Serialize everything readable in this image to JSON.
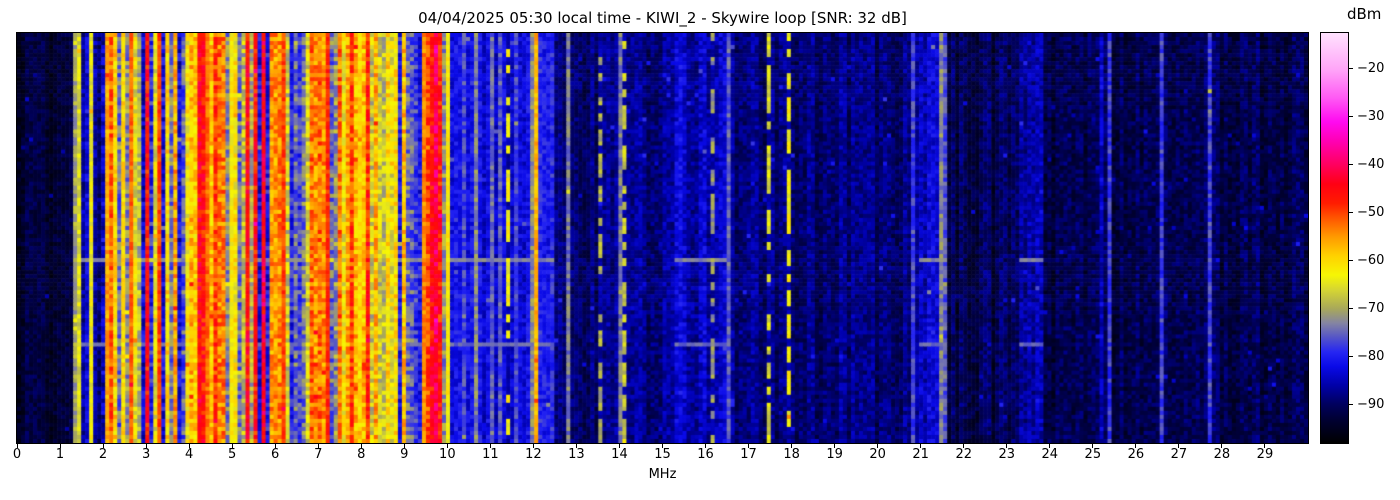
{
  "title": "04/04/2025 05:30 local time - KIWI_2 - Skywire loop [SNR: 32 dB]",
  "xaxis": {
    "label": "MHz",
    "tick_labels": [
      "0",
      "1",
      "2",
      "3",
      "4",
      "5",
      "6",
      "7",
      "8",
      "9",
      "10",
      "11",
      "12",
      "13",
      "14",
      "15",
      "16",
      "17",
      "18",
      "19",
      "20",
      "21",
      "22",
      "23",
      "24",
      "25",
      "26",
      "27",
      "28",
      "29"
    ]
  },
  "colorbar": {
    "label": "dBm",
    "ticks": [
      {
        "value": -20,
        "label": "−20"
      },
      {
        "value": -30,
        "label": "−30"
      },
      {
        "value": -40,
        "label": "−40"
      },
      {
        "value": -50,
        "label": "−50"
      },
      {
        "value": -60,
        "label": "−60"
      },
      {
        "value": -70,
        "label": "−70"
      },
      {
        "value": -80,
        "label": "−80"
      },
      {
        "value": -90,
        "label": "−90"
      }
    ]
  },
  "chart_data": {
    "type": "heatmap",
    "subtype": "rf-waterfall-spectrogram",
    "title": "04/04/2025 05:30 local time - KIWI_2 - Skywire loop [SNR: 32 dB]",
    "xlabel": "MHz",
    "ylabel": "",
    "x_range": [
      0,
      30
    ],
    "x_tick_step": 1,
    "grid": false,
    "legend": false,
    "color_scale": {
      "label": "dBm",
      "min": -98,
      "max": -12.5,
      "ticks": [
        -20,
        -30,
        -40,
        -50,
        -60,
        -70,
        -80,
        -90
      ],
      "colormap_stops": [
        [
          -98,
          "#000000"
        ],
        [
          -93,
          "#000034"
        ],
        [
          -90,
          "#00005c"
        ],
        [
          -86,
          "#0000a8"
        ],
        [
          -82,
          "#0a0ae8"
        ],
        [
          -79,
          "#2626f2"
        ],
        [
          -76,
          "#5454c8"
        ],
        [
          -73,
          "#8484a2"
        ],
        [
          -70,
          "#a8a85a"
        ],
        [
          -66,
          "#d6d632"
        ],
        [
          -63,
          "#f6f604"
        ],
        [
          -59,
          "#ffd200"
        ],
        [
          -55,
          "#ff9a00"
        ],
        [
          -51,
          "#ff5400"
        ],
        [
          -48,
          "#ff1c00"
        ],
        [
          -44,
          "#ff0014"
        ],
        [
          -40,
          "#ff005e"
        ],
        [
          -35,
          "#ff00b4"
        ],
        [
          -31,
          "#ff0af0"
        ],
        [
          -26,
          "#ff5af4"
        ],
        [
          -20,
          "#ffa6f8"
        ],
        [
          -12.5,
          "#ffe2fe"
        ]
      ]
    },
    "bands": [
      {
        "from": 0.0,
        "to": 1.35,
        "level": "black"
      },
      {
        "from": 1.35,
        "to": 1.95,
        "level": "low"
      },
      {
        "from": 1.95,
        "to": 3.0,
        "level": "active"
      },
      {
        "from": 3.0,
        "to": 5.15,
        "level": "hot"
      },
      {
        "from": 5.15,
        "to": 5.9,
        "level": "active"
      },
      {
        "from": 5.9,
        "to": 7.7,
        "level": "hot"
      },
      {
        "from": 7.7,
        "to": 9.4,
        "level": "active"
      },
      {
        "from": 9.4,
        "to": 9.95,
        "level": "hot"
      },
      {
        "from": 9.95,
        "to": 12.45,
        "level": "medium"
      },
      {
        "from": 12.45,
        "to": 15.3,
        "level": "sparse"
      },
      {
        "from": 15.3,
        "to": 16.45,
        "level": "faint"
      },
      {
        "from": 16.45,
        "to": 20.95,
        "level": "sparse"
      },
      {
        "from": 20.95,
        "to": 21.65,
        "level": "faint"
      },
      {
        "from": 21.65,
        "to": 23.25,
        "level": "quiet"
      },
      {
        "from": 23.25,
        "to": 23.85,
        "level": "faint"
      },
      {
        "from": 23.85,
        "to": 30.0,
        "level": "quiet"
      }
    ],
    "column_profiles": {
      "black": {
        "cats": [
          [
            0.015,
            -84,
            3
          ],
          [
            1,
            -93,
            2
          ]
        ],
        "jitter": 2.5
      },
      "quiet": {
        "cats": [
          [
            0.02,
            -80,
            4
          ],
          [
            1,
            -91,
            2.5
          ]
        ],
        "jitter": 3
      },
      "sparse": {
        "cats": [
          [
            0.03,
            -78,
            5
          ],
          [
            1,
            -88.5,
            2.5
          ]
        ],
        "jitter": 3
      },
      "faint": {
        "cats": [
          [
            0.06,
            -75,
            5
          ],
          [
            1,
            -84.5,
            2.8
          ]
        ],
        "jitter": 3.2
      },
      "medium": {
        "cats": [
          [
            0.1,
            -73,
            5
          ],
          [
            0.35,
            -78,
            4
          ],
          [
            1,
            -82.5,
            2.5
          ]
        ],
        "jitter": 3.2
      },
      "low": {
        "cats": [
          [
            0.14,
            -66,
            8
          ],
          [
            0.4,
            -78,
            5
          ],
          [
            1,
            -86,
            3
          ]
        ],
        "jitter": 3.5
      },
      "active": {
        "cats": [
          [
            0.22,
            -52,
            9
          ],
          [
            0.56,
            -63,
            7
          ],
          [
            0.8,
            -71,
            5
          ],
          [
            1,
            -79,
            6
          ]
        ],
        "jitter": 5
      },
      "hot": {
        "cats": [
          [
            0.4,
            -49,
            8
          ],
          [
            0.7,
            -60,
            7
          ],
          [
            0.85,
            -70,
            5
          ],
          [
            1,
            -78,
            5
          ]
        ],
        "jitter": 5
      }
    },
    "signals": [
      {
        "freq": 2.05,
        "power": -56
      },
      {
        "freq": 2.46,
        "power": -60
      },
      {
        "freq": 2.61,
        "power": -52
      },
      {
        "freq": 3.33,
        "power": -50
      },
      {
        "freq": 4.47,
        "power": -52
      },
      {
        "freq": 5.0,
        "power": -62
      },
      {
        "freq": 6.18,
        "power": -50
      },
      {
        "freq": 7.26,
        "power": -48
      },
      {
        "freq": 8.0,
        "power": -60
      },
      {
        "freq": 9.41,
        "power": -54
      },
      {
        "freq": 10.0,
        "power": -62
      },
      {
        "freq": 11.45,
        "power": -63,
        "dashed": true
      },
      {
        "freq": 12.08,
        "power": -57
      },
      {
        "freq": 13.56,
        "power": -69,
        "dashed": true
      },
      {
        "freq": 14.1,
        "power": -67,
        "dashed": true
      },
      {
        "freq": 16.2,
        "power": -71,
        "dashed": true
      },
      {
        "freq": 17.48,
        "power": -66,
        "dashed": true
      },
      {
        "freq": 17.9,
        "power": -63,
        "dashed": true
      },
      {
        "freq": 25.2,
        "power": -83,
        "dashed": true
      }
    ],
    "event_rows": [
      {
        "frac": 0.549,
        "boost_to": -73
      },
      {
        "frac": 0.751,
        "boost_to": -75
      }
    ],
    "render": {
      "cols": 322,
      "rows": 102,
      "seed": 20250404
    }
  }
}
